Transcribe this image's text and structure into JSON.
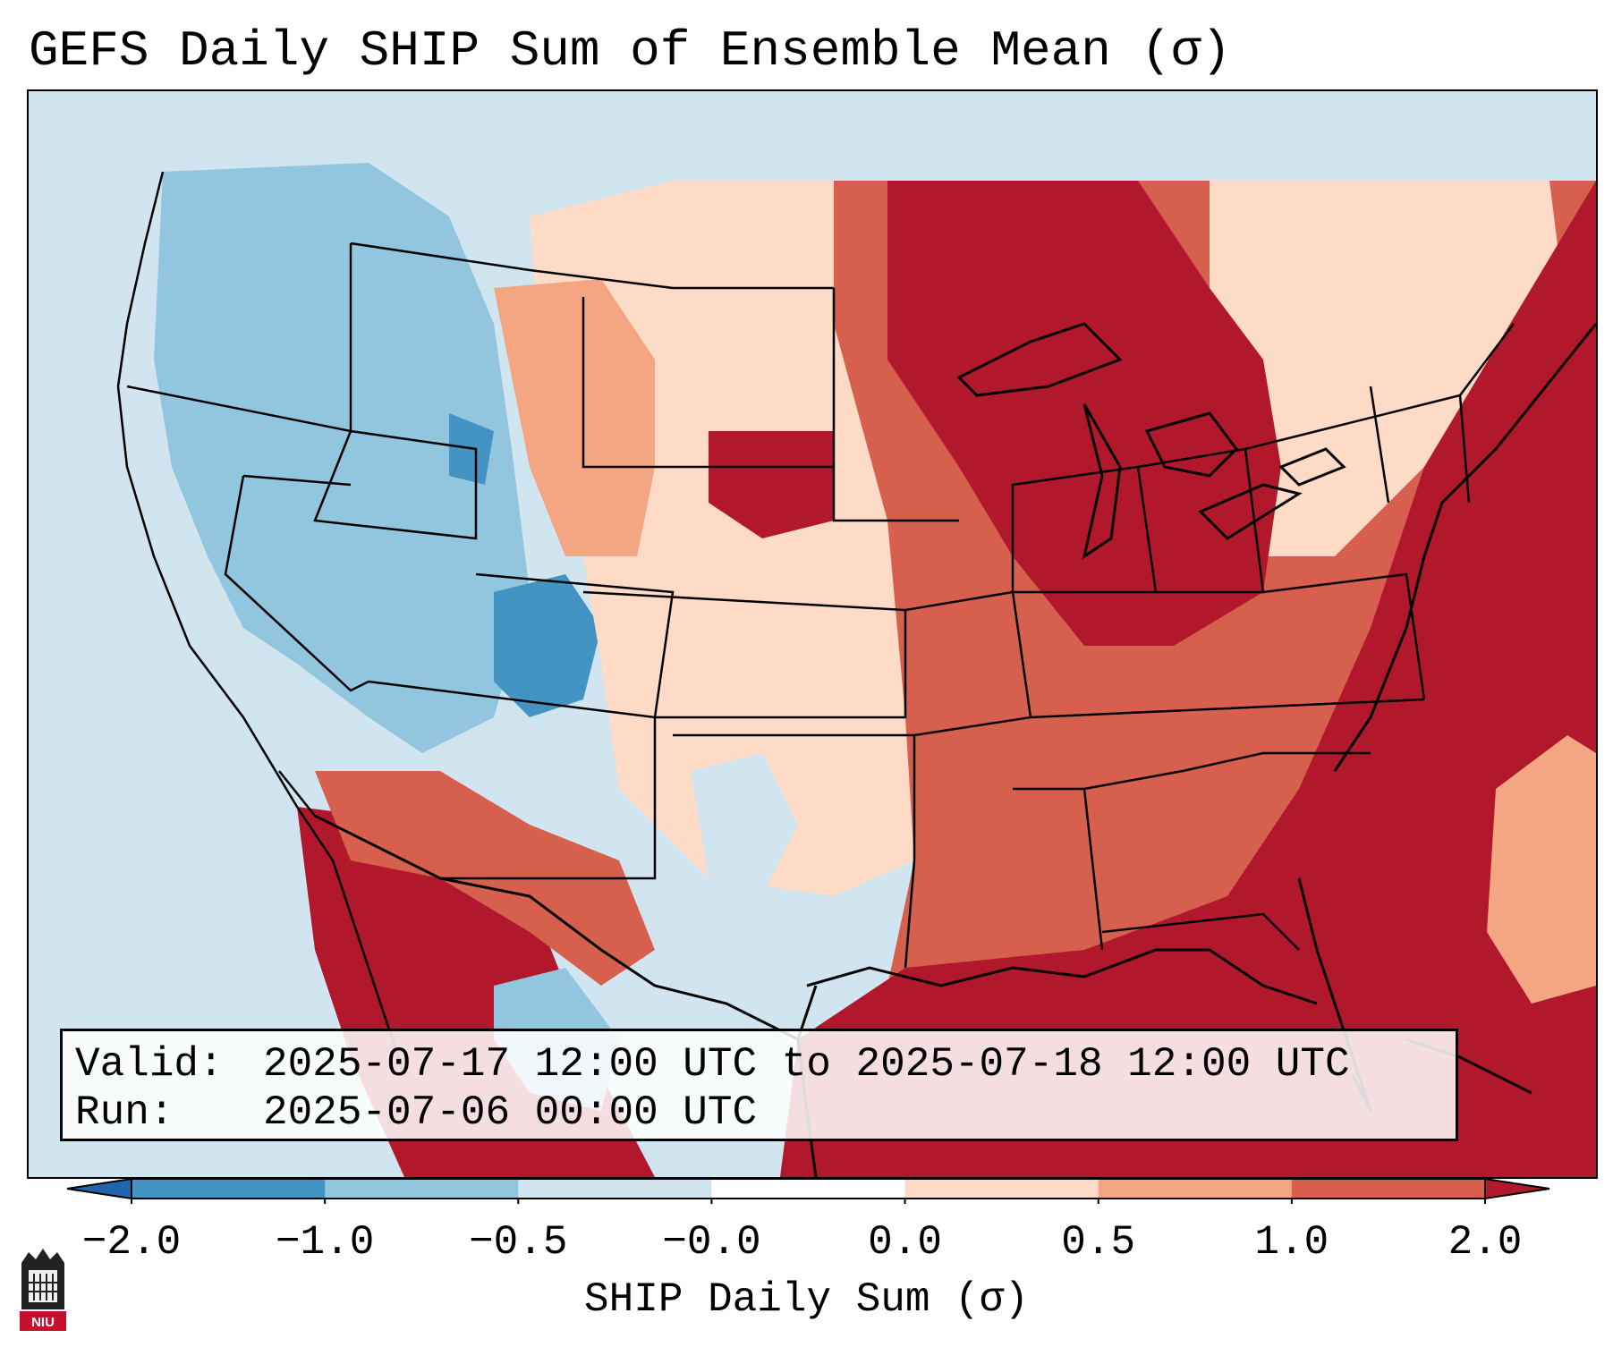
{
  "title": "GEFS Daily SHIP Sum of Ensemble Mean (σ)",
  "info": {
    "valid_label": "Valid:",
    "valid_value": "2025-07-17 12:00 UTC to 2025-07-18 12:00 UTC",
    "run_label": "Run:",
    "run_value": "2025-07-06 00:00 UTC"
  },
  "colorbar": {
    "label": "SHIP Daily Sum (σ)",
    "ticks": [
      "−2.0",
      "−1.0",
      "−0.5",
      "−0.0",
      "0.0",
      "0.5",
      "1.0",
      "2.0"
    ],
    "colors": [
      "#2166ac",
      "#4393c3",
      "#92c5de",
      "#d1e5f0",
      "#ffffff",
      "#fddbc7",
      "#f4a582",
      "#d6604d",
      "#b2182b"
    ]
  },
  "logo": {
    "text": "NIU",
    "color": "#c8102e"
  }
}
